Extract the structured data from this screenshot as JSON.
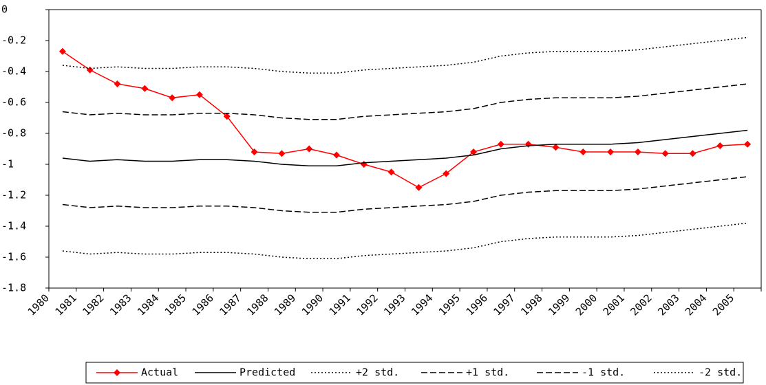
{
  "chart_data": {
    "type": "line",
    "categories": [
      "1980",
      "1981",
      "1982",
      "1983",
      "1984",
      "1985",
      "1986",
      "1987",
      "1988",
      "1989",
      "1990",
      "1991",
      "1992",
      "1993",
      "1994",
      "1995",
      "1996",
      "1997",
      "1998",
      "1999",
      "2000",
      "2001",
      "2002",
      "2003",
      "2004",
      "2005"
    ],
    "ylim": [
      -1.8,
      0
    ],
    "yticks": [
      0,
      -0.2,
      -0.4,
      -0.6,
      -0.8,
      -1,
      -1.2,
      -1.4,
      -1.6,
      -1.8
    ],
    "legend": "bottom",
    "series": [
      {
        "name": "Actual",
        "color": "#ff0000",
        "dash": "solid",
        "marker": "diamond",
        "values": [
          -0.27,
          -0.39,
          -0.48,
          -0.51,
          -0.57,
          -0.55,
          -0.69,
          -0.92,
          -0.93,
          -0.9,
          -0.94,
          -1.0,
          -1.05,
          -1.15,
          -1.06,
          -0.92,
          -0.87,
          -0.87,
          -0.89,
          -0.92,
          -0.92,
          -0.92,
          -0.93,
          -0.93,
          -0.88,
          -0.87
        ]
      },
      {
        "name": "Predicted",
        "color": "#000000",
        "dash": "solid",
        "values": [
          -0.96,
          -0.98,
          -0.97,
          -0.98,
          -0.98,
          -0.97,
          -0.97,
          -0.98,
          -1.0,
          -1.01,
          -1.01,
          -0.99,
          -0.98,
          -0.97,
          -0.96,
          -0.94,
          -0.9,
          -0.88,
          -0.87,
          -0.87,
          -0.87,
          -0.86,
          -0.84,
          -0.82,
          -0.8,
          -0.78
        ]
      },
      {
        "name": "+2 std.",
        "color": "#000000",
        "dash": "dotted",
        "values": [
          -0.36,
          -0.38,
          -0.37,
          -0.38,
          -0.38,
          -0.37,
          -0.37,
          -0.38,
          -0.4,
          -0.41,
          -0.41,
          -0.39,
          -0.38,
          -0.37,
          -0.36,
          -0.34,
          -0.3,
          -0.28,
          -0.27,
          -0.27,
          -0.27,
          -0.26,
          -0.24,
          -0.22,
          -0.2,
          -0.18
        ]
      },
      {
        "name": "+1 std.",
        "color": "#000000",
        "dash": "dashed",
        "values": [
          -0.66,
          -0.68,
          -0.67,
          -0.68,
          -0.68,
          -0.67,
          -0.67,
          -0.68,
          -0.7,
          -0.71,
          -0.71,
          -0.69,
          -0.68,
          -0.67,
          -0.66,
          -0.64,
          -0.6,
          -0.58,
          -0.57,
          -0.57,
          -0.57,
          -0.56,
          -0.54,
          -0.52,
          -0.5,
          -0.48
        ]
      },
      {
        "name": "-1 std.",
        "color": "#000000",
        "dash": "dashed",
        "values": [
          -1.26,
          -1.28,
          -1.27,
          -1.28,
          -1.28,
          -1.27,
          -1.27,
          -1.28,
          -1.3,
          -1.31,
          -1.31,
          -1.29,
          -1.28,
          -1.27,
          -1.26,
          -1.24,
          -1.2,
          -1.18,
          -1.17,
          -1.17,
          -1.17,
          -1.16,
          -1.14,
          -1.12,
          -1.1,
          -1.08
        ]
      },
      {
        "name": "-2 std.",
        "color": "#000000",
        "dash": "dotted",
        "values": [
          -1.56,
          -1.58,
          -1.57,
          -1.58,
          -1.58,
          -1.57,
          -1.57,
          -1.58,
          -1.6,
          -1.61,
          -1.61,
          -1.59,
          -1.58,
          -1.57,
          -1.56,
          -1.54,
          -1.5,
          -1.48,
          -1.47,
          -1.47,
          -1.47,
          -1.46,
          -1.44,
          -1.42,
          -1.4,
          -1.38
        ]
      }
    ]
  }
}
